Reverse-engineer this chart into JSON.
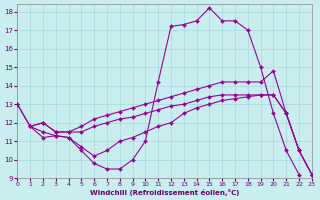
{
  "xlabel": "Windchill (Refroidissement éolien,°C)",
  "bg_color": "#c8eef0",
  "grid_color": "#a8d8dc",
  "line_color": "#990099",
  "xlim": [
    0,
    23
  ],
  "ylim": [
    9,
    18.4
  ],
  "xticks": [
    0,
    1,
    2,
    3,
    4,
    5,
    6,
    7,
    8,
    9,
    10,
    11,
    12,
    13,
    14,
    15,
    16,
    17,
    18,
    19,
    20,
    21,
    22,
    23
  ],
  "yticks": [
    9,
    10,
    11,
    12,
    13,
    14,
    15,
    16,
    17,
    18
  ],
  "s1_x": [
    0,
    1,
    2,
    3,
    4,
    5,
    6,
    7,
    8,
    9,
    10,
    11,
    12,
    13,
    14,
    15,
    16,
    17,
    18,
    19,
    20,
    21,
    22
  ],
  "s1_y": [
    13,
    11.8,
    11.2,
    11.3,
    11.2,
    10.5,
    9.8,
    9.5,
    9.5,
    10.0,
    11.0,
    14.2,
    17.2,
    17.3,
    17.5,
    18.2,
    17.5,
    17.5,
    17.0,
    15.0,
    12.5,
    10.5,
    9.2
  ],
  "s2_x": [
    0,
    1,
    2,
    3,
    4,
    5,
    6,
    7,
    8,
    9,
    10,
    11,
    12,
    13,
    14,
    15,
    16,
    17,
    18,
    19,
    20,
    21,
    22,
    23
  ],
  "s2_y": [
    13.0,
    11.8,
    11.5,
    11.3,
    11.2,
    10.7,
    10.2,
    10.5,
    11.0,
    11.2,
    11.5,
    11.8,
    12.0,
    12.5,
    12.8,
    13.0,
    13.2,
    13.3,
    13.4,
    13.5,
    13.5,
    12.5,
    10.5,
    9.2
  ],
  "s3_x": [
    1,
    2,
    3,
    4,
    5,
    6,
    7,
    8,
    9,
    10,
    11,
    12,
    13,
    14,
    15,
    16,
    17,
    18,
    19,
    20,
    21,
    22,
    23
  ],
  "s3_y": [
    11.8,
    12.0,
    11.5,
    11.5,
    11.5,
    11.8,
    12.0,
    12.2,
    12.3,
    12.5,
    12.7,
    12.9,
    13.0,
    13.2,
    13.4,
    13.5,
    13.5,
    13.5,
    13.5,
    13.5,
    12.5,
    10.5,
    9.2
  ],
  "s4_x": [
    1,
    2,
    3,
    4,
    5,
    6,
    7,
    8,
    9,
    10,
    11,
    12,
    13,
    14,
    15,
    16,
    17,
    18,
    19,
    20,
    21,
    22,
    23
  ],
  "s4_y": [
    11.8,
    12.0,
    11.5,
    11.5,
    11.8,
    12.2,
    12.4,
    12.6,
    12.8,
    13.0,
    13.2,
    13.4,
    13.6,
    13.8,
    14.0,
    14.2,
    14.2,
    14.2,
    14.2,
    14.8,
    12.5,
    10.5,
    9.2
  ]
}
